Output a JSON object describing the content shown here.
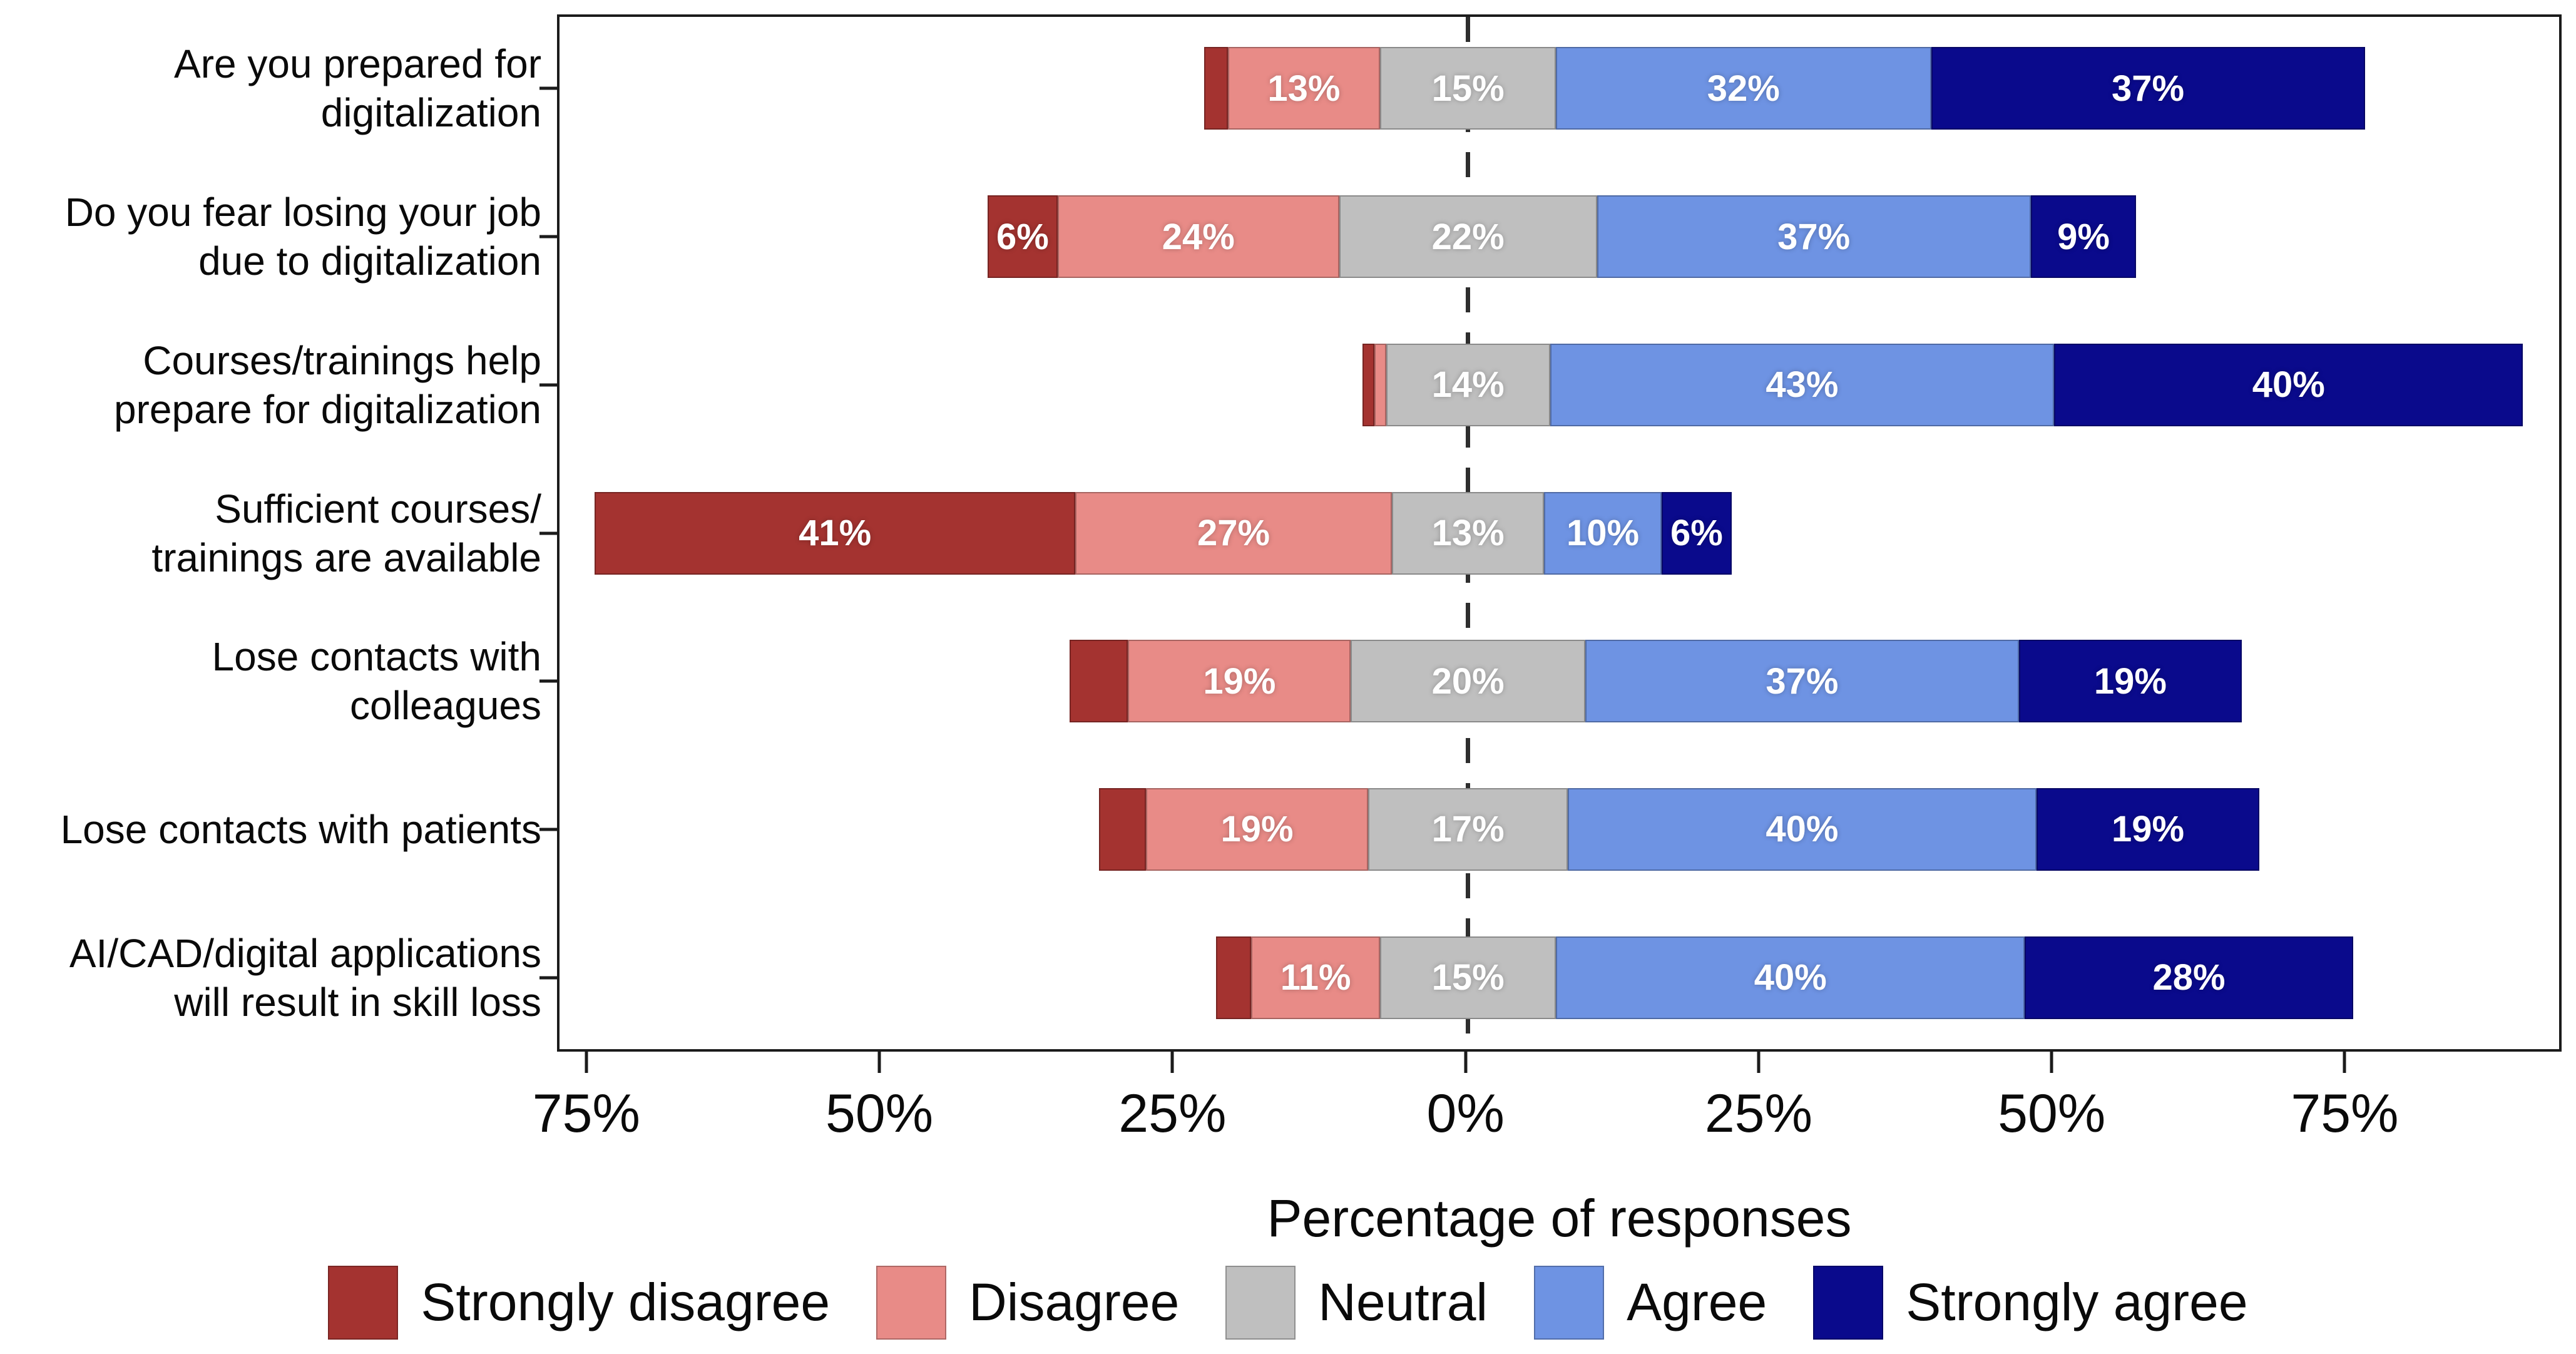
{
  "chart_data": {
    "type": "bar",
    "subtype": "diverging_stacked_bar_likert",
    "title": "",
    "xlabel": "Percentage of responses",
    "ylabel": "",
    "categories": [
      "Are you prepared for\ndigitalization",
      "Do you fear losing your job\ndue to digitalization",
      "Courses/trainings help\nprepare for digitalization",
      "Sufficient courses/\ntrainings are available",
      "Lose contacts with\ncolleagues",
      "Lose contacts with patients",
      "AI/CAD/digital applications\nwill result in skill loss"
    ],
    "series": [
      {
        "name": "Strongly disagree",
        "color": "#A43330",
        "values": [
          2,
          6,
          1,
          41,
          5,
          4,
          3
        ]
      },
      {
        "name": "Disagree",
        "color": "#E88B87",
        "values": [
          13,
          24,
          1,
          27,
          19,
          19,
          11
        ]
      },
      {
        "name": "Neutral",
        "color": "#BFBFBF",
        "values": [
          15,
          22,
          14,
          13,
          20,
          17,
          15
        ]
      },
      {
        "name": "Agree",
        "color": "#6E93E3",
        "values": [
          32,
          37,
          43,
          10,
          37,
          40,
          40
        ]
      },
      {
        "name": "Strongly agree",
        "color": "#0A0A8C",
        "values": [
          37,
          9,
          40,
          6,
          19,
          19,
          28
        ]
      }
    ],
    "value_label_format": "{v}%",
    "value_label_min_show": 6,
    "neutral_centered_at_zero": true,
    "x_ticks": [
      {
        "value": -75,
        "label": "75%"
      },
      {
        "value": -50,
        "label": "50%"
      },
      {
        "value": -25,
        "label": "25%"
      },
      {
        "value": 0,
        "label": "0%"
      },
      {
        "value": 25,
        "label": "25%"
      },
      {
        "value": 50,
        "label": "50%"
      },
      {
        "value": 75,
        "label": "75%"
      }
    ],
    "axis_range": [
      -77.5,
      93.5
    ],
    "zero_line_style": "dashed",
    "grid": false,
    "legend_position": "bottom",
    "legend": [
      "Strongly disagree",
      "Disagree",
      "Neutral",
      "Agree",
      "Strongly agree"
    ]
  }
}
